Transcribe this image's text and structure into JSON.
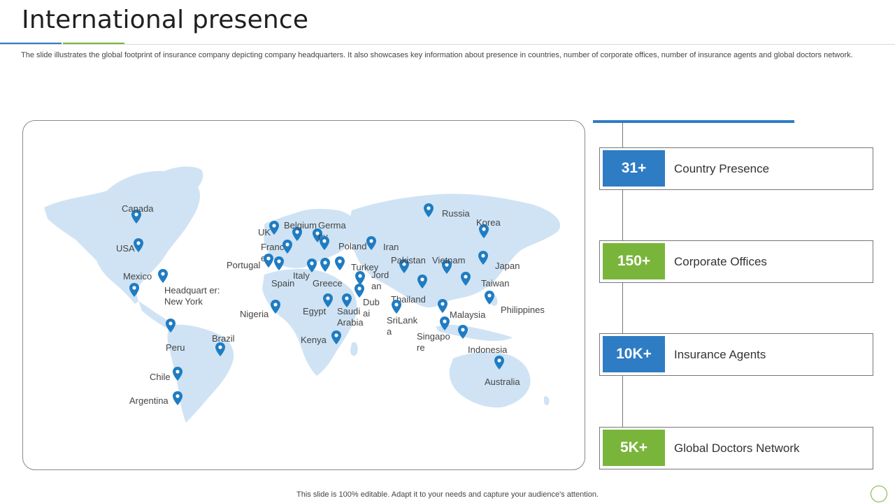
{
  "slide": {
    "title": "International presence",
    "description": "The slide illustrates the global footprint of insurance company depicting company headquarters. It also showcases key information about presence in countries, number of corporate offices, number of insurance agents and global doctors network.",
    "footer": "This slide is 100% editable. Adapt it to your needs and capture your audience's attention."
  },
  "map": {
    "locations": [
      {
        "label": "Canada"
      },
      {
        "label": "USA"
      },
      {
        "label": "Mexico"
      },
      {
        "label": "Headquart er: New York"
      },
      {
        "label": "Peru"
      },
      {
        "label": "Brazil"
      },
      {
        "label": "Chile"
      },
      {
        "label": "Argentina"
      },
      {
        "label": "UK"
      },
      {
        "label": "Belgium"
      },
      {
        "label": "Germa ny"
      },
      {
        "label": "Franc e"
      },
      {
        "label": "Poland"
      },
      {
        "label": "Iran"
      },
      {
        "label": "Portugal"
      },
      {
        "label": "Spain"
      },
      {
        "label": "Italy"
      },
      {
        "label": "Greece"
      },
      {
        "label": "Turkey"
      },
      {
        "label": "Jord an"
      },
      {
        "label": "Dub ai"
      },
      {
        "label": "Saudi Arabia"
      },
      {
        "label": "Nigeria"
      },
      {
        "label": "Egypt"
      },
      {
        "label": "Kenya"
      },
      {
        "label": "Russia"
      },
      {
        "label": "Korea"
      },
      {
        "label": "Japan"
      },
      {
        "label": "Pakistan"
      },
      {
        "label": "Vietnam"
      },
      {
        "label": "Taiwan"
      },
      {
        "label": "Thailand"
      },
      {
        "label": "SriLank a"
      },
      {
        "label": "Malaysia"
      },
      {
        "label": "Philippines"
      },
      {
        "label": "Singapo re"
      },
      {
        "label": "Indonesia"
      },
      {
        "label": "Australia"
      }
    ],
    "pin_color": "#1f7cc2",
    "land_color": "#cfe3f4"
  },
  "stats": [
    {
      "value": "31+",
      "label": "Country Presence",
      "color": "#2e7cc4"
    },
    {
      "value": "150+",
      "label": "Corporate Offices",
      "color": "#79b53a"
    },
    {
      "value": "10K+",
      "label": "Insurance Agents",
      "color": "#2e7cc4"
    },
    {
      "value": "5K+",
      "label": "Global Doctors Network",
      "color": "#79b53a"
    }
  ]
}
